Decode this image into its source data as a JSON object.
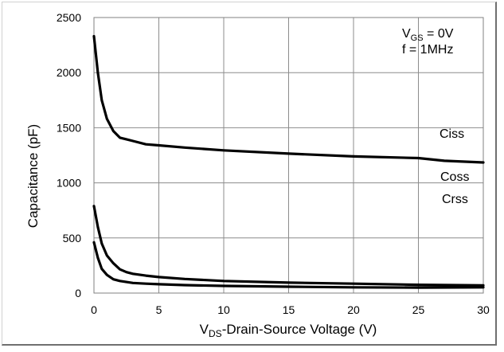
{
  "chart_data": {
    "type": "line",
    "xlabel": {
      "main": "V",
      "sub": "DS",
      "rest": "-Drain-Source Voltage (V)"
    },
    "ylabel": "Capacitance (pF)",
    "xlim": [
      0,
      30
    ],
    "ylim": [
      0,
      2500
    ],
    "xticks": [
      0,
      5,
      10,
      15,
      20,
      25,
      30
    ],
    "yticks": [
      0,
      500,
      1000,
      1500,
      2000,
      2500
    ],
    "grid": true,
    "annotation": {
      "line1": {
        "main": "V",
        "sub": "GS",
        "rest": " = 0V"
      },
      "line2": "f = 1MHz"
    },
    "series": [
      {
        "name": "Ciss",
        "x": [
          0,
          0.3,
          0.6,
          1,
          1.5,
          2,
          2.5,
          3,
          4,
          5,
          7,
          10,
          15,
          20,
          25,
          27,
          30
        ],
        "y": [
          2330,
          2000,
          1750,
          1580,
          1470,
          1410,
          1395,
          1380,
          1350,
          1340,
          1320,
          1295,
          1265,
          1240,
          1225,
          1200,
          1185
        ]
      },
      {
        "name": "Coss",
        "x": [
          0,
          0.3,
          0.6,
          1,
          1.5,
          2,
          2.5,
          3,
          4,
          5,
          7,
          10,
          15,
          20,
          25,
          30
        ],
        "y": [
          790,
          600,
          450,
          340,
          270,
          215,
          190,
          175,
          158,
          145,
          128,
          110,
          95,
          85,
          75,
          70
        ]
      },
      {
        "name": "Crss",
        "x": [
          0,
          0.3,
          0.6,
          1,
          1.5,
          2,
          3,
          4,
          5,
          7,
          10,
          15,
          20,
          25,
          30
        ],
        "y": [
          460,
          320,
          220,
          165,
          125,
          110,
          92,
          85,
          80,
          72,
          65,
          58,
          52,
          50,
          52
        ]
      }
    ],
    "labels": [
      "Ciss",
      "Coss",
      "Crss"
    ]
  }
}
